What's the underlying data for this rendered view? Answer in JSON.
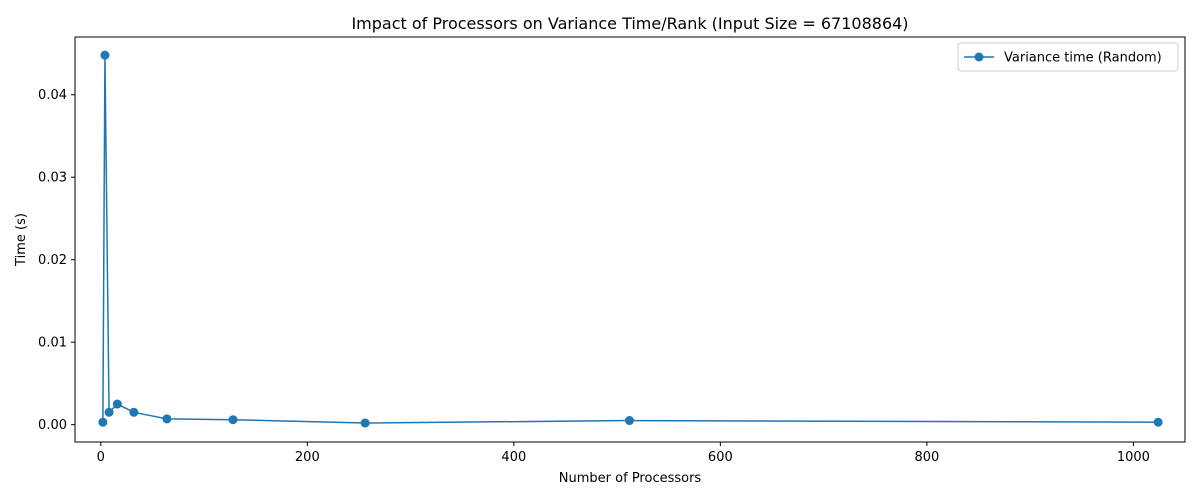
{
  "chart_data": {
    "type": "line",
    "title": "Impact of Processors on Variance Time/Rank (Input Size = 67108864)",
    "xlabel": "Number of Processors",
    "ylabel": "Time (s)",
    "xlim": [
      -25,
      1050
    ],
    "ylim": [
      -0.0021,
      0.047
    ],
    "xticks": [
      0,
      200,
      400,
      600,
      800,
      1000
    ],
    "xtick_labels": [
      "0",
      "200",
      "400",
      "600",
      "800",
      "1000"
    ],
    "yticks": [
      0.0,
      0.01,
      0.02,
      0.03,
      0.04
    ],
    "ytick_labels": [
      "0.00",
      "0.01",
      "0.02",
      "0.03",
      "0.04"
    ],
    "grid": false,
    "legend_position": "top-right",
    "series": [
      {
        "name": "Variance time (Random)",
        "color": "#1f77b4",
        "marker": "circle",
        "x": [
          2,
          4,
          8,
          16,
          32,
          64,
          128,
          256,
          512,
          1024
        ],
        "y": [
          0.0003,
          0.0448,
          0.0015,
          0.0025,
          0.0015,
          0.0007,
          0.0006,
          0.0002,
          0.0005,
          0.0003
        ]
      }
    ]
  }
}
